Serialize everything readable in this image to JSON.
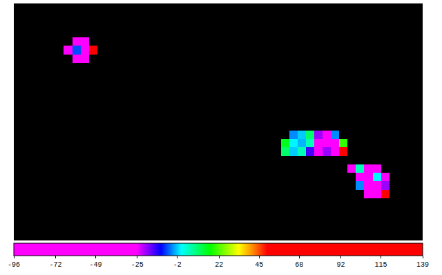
{
  "chart_data": {
    "type": "heatmap",
    "tick_labels": false,
    "colorbar_range": [
      -96,
      139
    ],
    "colorbar_ticks": [
      -96,
      -72,
      -49,
      -25,
      -2,
      22,
      45,
      68,
      92,
      115,
      139
    ],
    "z": [
      [
        null,
        null,
        null,
        null,
        null,
        null,
        null,
        null,
        null,
        null,
        null,
        null,
        null,
        null,
        null,
        null,
        null,
        null,
        null,
        null,
        null,
        null,
        null,
        null,
        null,
        null,
        null,
        null,
        null,
        null,
        null,
        null,
        null,
        null,
        null,
        null,
        null,
        null,
        null,
        null,
        null,
        null,
        null,
        null,
        null,
        null,
        null,
        null,
        null
      ],
      [
        null,
        null,
        null,
        null,
        null,
        null,
        null,
        null,
        null,
        null,
        null,
        null,
        null,
        null,
        null,
        null,
        null,
        null,
        null,
        null,
        null,
        null,
        null,
        null,
        null,
        null,
        null,
        null,
        null,
        null,
        null,
        null,
        null,
        null,
        null,
        null,
        null,
        null,
        null,
        null,
        null,
        null,
        null,
        null,
        null,
        null,
        null,
        null,
        null
      ],
      [
        null,
        null,
        null,
        null,
        null,
        null,
        null,
        null,
        null,
        null,
        null,
        null,
        null,
        null,
        null,
        null,
        null,
        null,
        null,
        null,
        null,
        null,
        null,
        null,
        null,
        null,
        null,
        null,
        null,
        null,
        null,
        null,
        null,
        null,
        null,
        null,
        null,
        null,
        null,
        null,
        null,
        null,
        null,
        null,
        null,
        null,
        null,
        null,
        null
      ],
      [
        null,
        null,
        null,
        null,
        null,
        null,
        null,
        null,
        null,
        null,
        null,
        null,
        null,
        null,
        null,
        null,
        null,
        null,
        null,
        null,
        null,
        null,
        null,
        null,
        null,
        null,
        null,
        null,
        null,
        null,
        null,
        null,
        null,
        null,
        null,
        null,
        null,
        null,
        null,
        null,
        null,
        null,
        null,
        null,
        null,
        null,
        null,
        null,
        null
      ],
      [
        null,
        null,
        null,
        null,
        null,
        null,
        null,
        -85,
        -90,
        null,
        null,
        null,
        null,
        null,
        null,
        null,
        null,
        null,
        null,
        null,
        null,
        null,
        null,
        null,
        null,
        null,
        null,
        null,
        null,
        null,
        null,
        null,
        null,
        null,
        null,
        null,
        null,
        null,
        null,
        null,
        null,
        null,
        null,
        null,
        null,
        null,
        null,
        null,
        null
      ],
      [
        null,
        null,
        null,
        null,
        null,
        null,
        -88,
        -8,
        -60,
        110,
        null,
        null,
        null,
        null,
        null,
        null,
        null,
        null,
        null,
        null,
        null,
        null,
        null,
        null,
        null,
        null,
        null,
        null,
        null,
        null,
        null,
        null,
        null,
        null,
        null,
        null,
        null,
        null,
        null,
        null,
        null,
        null,
        null,
        null,
        null,
        null,
        null,
        null,
        null
      ],
      [
        null,
        null,
        null,
        null,
        null,
        null,
        null,
        -90,
        -80,
        null,
        null,
        null,
        null,
        null,
        null,
        null,
        null,
        null,
        null,
        null,
        null,
        null,
        null,
        null,
        null,
        null,
        null,
        null,
        null,
        null,
        null,
        null,
        null,
        null,
        null,
        null,
        null,
        null,
        null,
        null,
        null,
        null,
        null,
        null,
        null,
        null,
        null,
        null,
        null
      ],
      [
        null,
        null,
        null,
        null,
        null,
        null,
        null,
        null,
        null,
        null,
        null,
        null,
        null,
        null,
        null,
        null,
        null,
        null,
        null,
        null,
        null,
        null,
        null,
        null,
        null,
        null,
        null,
        null,
        null,
        null,
        null,
        null,
        null,
        null,
        null,
        null,
        null,
        null,
        null,
        null,
        null,
        null,
        null,
        null,
        null,
        null,
        null,
        null,
        null
      ],
      [
        null,
        null,
        null,
        null,
        null,
        null,
        null,
        null,
        null,
        null,
        null,
        null,
        null,
        null,
        null,
        null,
        null,
        null,
        null,
        null,
        null,
        null,
        null,
        null,
        null,
        null,
        null,
        null,
        null,
        null,
        null,
        null,
        null,
        null,
        null,
        null,
        null,
        null,
        null,
        null,
        null,
        null,
        null,
        null,
        null,
        null,
        null,
        null,
        null
      ],
      [
        null,
        null,
        null,
        null,
        null,
        null,
        null,
        null,
        null,
        null,
        null,
        null,
        null,
        null,
        null,
        null,
        null,
        null,
        null,
        null,
        null,
        null,
        null,
        null,
        null,
        null,
        null,
        null,
        null,
        null,
        null,
        null,
        null,
        null,
        null,
        null,
        null,
        null,
        null,
        null,
        null,
        null,
        null,
        null,
        null,
        null,
        null,
        null,
        null
      ],
      [
        null,
        null,
        null,
        null,
        null,
        null,
        null,
        null,
        null,
        null,
        null,
        null,
        null,
        null,
        null,
        null,
        null,
        null,
        null,
        null,
        null,
        null,
        null,
        null,
        null,
        null,
        null,
        null,
        null,
        null,
        null,
        null,
        null,
        null,
        null,
        null,
        null,
        null,
        null,
        null,
        null,
        null,
        null,
        null,
        null,
        null,
        null,
        null,
        null
      ],
      [
        null,
        null,
        null,
        null,
        null,
        null,
        null,
        null,
        null,
        null,
        null,
        null,
        null,
        null,
        null,
        null,
        null,
        null,
        null,
        null,
        null,
        null,
        null,
        null,
        null,
        null,
        null,
        null,
        null,
        null,
        null,
        null,
        null,
        null,
        null,
        null,
        null,
        null,
        null,
        null,
        null,
        null,
        null,
        null,
        null,
        null,
        null,
        null,
        null
      ],
      [
        null,
        null,
        null,
        null,
        null,
        null,
        null,
        null,
        null,
        null,
        null,
        null,
        null,
        null,
        null,
        null,
        null,
        null,
        null,
        null,
        null,
        null,
        null,
        null,
        null,
        null,
        null,
        null,
        null,
        null,
        null,
        null,
        null,
        null,
        null,
        null,
        null,
        null,
        null,
        null,
        null,
        null,
        null,
        null,
        null,
        null,
        null,
        null,
        null
      ],
      [
        null,
        null,
        null,
        null,
        null,
        null,
        null,
        null,
        null,
        null,
        null,
        null,
        null,
        null,
        null,
        null,
        null,
        null,
        null,
        null,
        null,
        null,
        null,
        null,
        null,
        null,
        null,
        null,
        null,
        null,
        null,
        null,
        null,
        null,
        null,
        null,
        null,
        null,
        null,
        null,
        null,
        null,
        null,
        null,
        null,
        null,
        null,
        null,
        null
      ],
      [
        null,
        null,
        null,
        null,
        null,
        null,
        null,
        null,
        null,
        null,
        null,
        null,
        null,
        null,
        null,
        null,
        null,
        null,
        null,
        null,
        null,
        null,
        null,
        null,
        null,
        null,
        null,
        null,
        null,
        null,
        null,
        null,
        null,
        null,
        null,
        null,
        null,
        null,
        null,
        null,
        null,
        null,
        null,
        null,
        null,
        null,
        null,
        null,
        null
      ],
      [
        null,
        null,
        null,
        null,
        null,
        null,
        null,
        null,
        null,
        null,
        null,
        null,
        null,
        null,
        null,
        null,
        null,
        null,
        null,
        null,
        null,
        null,
        null,
        null,
        null,
        null,
        null,
        null,
        null,
        null,
        null,
        null,
        null,
        -5,
        -2,
        10,
        -20,
        -50,
        -5,
        null,
        null,
        null,
        null,
        null,
        null,
        null,
        null,
        null,
        null
      ],
      [
        null,
        null,
        null,
        null,
        null,
        null,
        null,
        null,
        null,
        null,
        null,
        null,
        null,
        null,
        null,
        null,
        null,
        null,
        null,
        null,
        null,
        null,
        null,
        null,
        null,
        null,
        null,
        null,
        null,
        null,
        null,
        null,
        15,
        0,
        -3,
        5,
        -30,
        -90,
        -40,
        20,
        null,
        null,
        null,
        null,
        null,
        null,
        null,
        null,
        null
      ],
      [
        null,
        null,
        null,
        null,
        null,
        null,
        null,
        null,
        null,
        null,
        null,
        null,
        null,
        null,
        null,
        null,
        null,
        null,
        null,
        null,
        null,
        null,
        null,
        null,
        null,
        null,
        null,
        null,
        null,
        null,
        null,
        null,
        10,
        -2,
        5,
        -15,
        -60,
        -20,
        -85,
        80,
        null,
        null,
        null,
        null,
        null,
        null,
        null,
        null,
        null
      ],
      [
        null,
        null,
        null,
        null,
        null,
        null,
        null,
        null,
        null,
        null,
        null,
        null,
        null,
        null,
        null,
        null,
        null,
        null,
        null,
        null,
        null,
        null,
        null,
        null,
        null,
        null,
        null,
        null,
        null,
        null,
        null,
        null,
        null,
        null,
        null,
        null,
        null,
        null,
        null,
        null,
        null,
        null,
        null,
        null,
        null,
        null,
        null,
        null,
        null
      ],
      [
        null,
        null,
        null,
        null,
        null,
        null,
        null,
        null,
        null,
        null,
        null,
        null,
        null,
        null,
        null,
        null,
        null,
        null,
        null,
        null,
        null,
        null,
        null,
        null,
        null,
        null,
        null,
        null,
        null,
        null,
        null,
        null,
        null,
        null,
        null,
        null,
        null,
        null,
        null,
        null,
        -80,
        5,
        -70,
        -85,
        null,
        null,
        null,
        null,
        null
      ],
      [
        null,
        null,
        null,
        null,
        null,
        null,
        null,
        null,
        null,
        null,
        null,
        null,
        null,
        null,
        null,
        null,
        null,
        null,
        null,
        null,
        null,
        null,
        null,
        null,
        null,
        null,
        null,
        null,
        null,
        null,
        null,
        null,
        null,
        null,
        null,
        null,
        null,
        null,
        null,
        null,
        null,
        -60,
        -90,
        0,
        -85,
        null,
        null,
        null,
        null
      ],
      [
        null,
        null,
        null,
        null,
        null,
        null,
        null,
        null,
        null,
        null,
        null,
        null,
        null,
        null,
        null,
        null,
        null,
        null,
        null,
        null,
        null,
        null,
        null,
        null,
        null,
        null,
        null,
        null,
        null,
        null,
        null,
        null,
        null,
        null,
        null,
        null,
        null,
        null,
        null,
        null,
        null,
        -5,
        -90,
        -88,
        -20,
        null,
        null,
        null,
        null
      ],
      [
        null,
        null,
        null,
        null,
        null,
        null,
        null,
        null,
        null,
        null,
        null,
        null,
        null,
        null,
        null,
        null,
        null,
        null,
        null,
        null,
        null,
        null,
        null,
        null,
        null,
        null,
        null,
        null,
        null,
        null,
        null,
        null,
        null,
        null,
        null,
        null,
        null,
        null,
        null,
        null,
        null,
        null,
        -80,
        -90,
        60,
        null,
        null,
        null,
        null
      ],
      [
        null,
        null,
        null,
        null,
        null,
        null,
        null,
        null,
        null,
        null,
        null,
        null,
        null,
        null,
        null,
        null,
        null,
        null,
        null,
        null,
        null,
        null,
        null,
        null,
        null,
        null,
        null,
        null,
        null,
        null,
        null,
        null,
        null,
        null,
        null,
        null,
        null,
        null,
        null,
        null,
        null,
        null,
        null,
        null,
        null,
        null,
        null,
        null,
        null
      ],
      [
        null,
        null,
        null,
        null,
        null,
        null,
        null,
        null,
        null,
        null,
        null,
        null,
        null,
        null,
        null,
        null,
        null,
        null,
        null,
        null,
        null,
        null,
        null,
        null,
        null,
        null,
        null,
        null,
        null,
        null,
        null,
        null,
        null,
        null,
        null,
        null,
        null,
        null,
        null,
        null,
        null,
        null,
        null,
        null,
        null,
        null,
        null,
        null,
        null
      ],
      [
        null,
        null,
        null,
        null,
        null,
        null,
        null,
        null,
        null,
        null,
        null,
        null,
        null,
        null,
        null,
        null,
        null,
        null,
        null,
        null,
        null,
        null,
        null,
        null,
        null,
        null,
        null,
        null,
        null,
        null,
        null,
        null,
        null,
        null,
        null,
        null,
        null,
        null,
        null,
        null,
        null,
        null,
        null,
        null,
        null,
        null,
        null,
        null,
        null
      ],
      [
        null,
        null,
        null,
        null,
        null,
        null,
        null,
        null,
        null,
        null,
        null,
        null,
        null,
        null,
        null,
        null,
        null,
        null,
        null,
        null,
        null,
        null,
        null,
        null,
        null,
        null,
        null,
        null,
        null,
        null,
        null,
        null,
        null,
        null,
        null,
        null,
        null,
        null,
        null,
        null,
        null,
        null,
        null,
        null,
        null,
        null,
        null,
        null,
        null
      ],
      [
        null,
        null,
        null,
        null,
        null,
        null,
        null,
        null,
        null,
        null,
        null,
        null,
        null,
        null,
        null,
        null,
        null,
        null,
        null,
        null,
        null,
        null,
        null,
        null,
        null,
        null,
        null,
        null,
        null,
        null,
        null,
        null,
        null,
        null,
        null,
        null,
        null,
        null,
        null,
        null,
        null,
        null,
        null,
        null,
        null,
        null,
        null,
        null,
        null
      ]
    ]
  }
}
